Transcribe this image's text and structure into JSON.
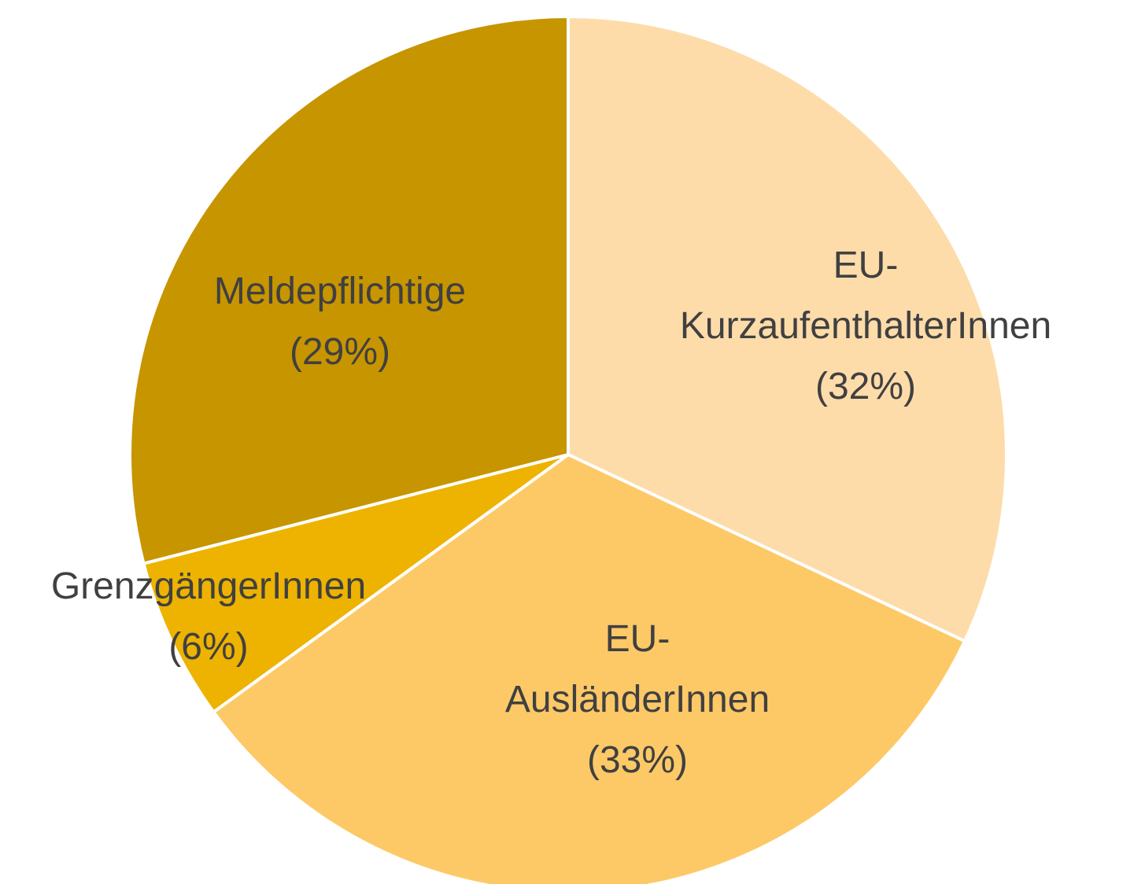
{
  "chart_data": {
    "type": "pie",
    "categories": [
      "EU-KurzaufenthalterInnen",
      "EU-AusländerInnen",
      "GrenzgängerInnen",
      "Meldepflichtige"
    ],
    "values": [
      32,
      33,
      6,
      29
    ],
    "value_labels": [
      "(32%)",
      "(33%)",
      "(6%)",
      "(29%)"
    ],
    "colors": [
      "#FDDCAA",
      "#FDC967",
      "#EDB300",
      "#C79500"
    ]
  }
}
